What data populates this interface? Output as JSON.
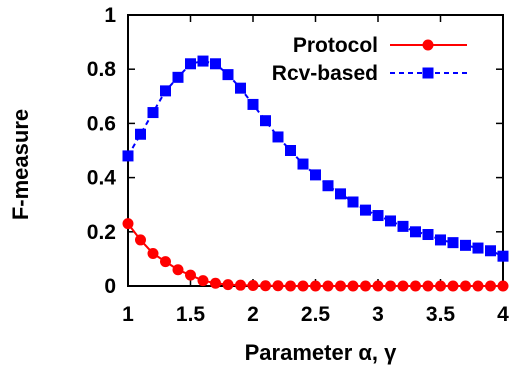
{
  "chart_data": {
    "type": "line",
    "xlabel": "Parameter α, γ",
    "ylabel": "F-measure",
    "xlim": [
      1,
      4
    ],
    "ylim": [
      0,
      1
    ],
    "xticks": [
      "1",
      "1.5",
      "2",
      "2.5",
      "3",
      "3.5",
      "4"
    ],
    "yticks": [
      "0",
      "0.2",
      "0.4",
      "0.6",
      "0.8",
      "1"
    ],
    "grid": false,
    "legend_position": "top-right",
    "x": [
      1.0,
      1.1,
      1.2,
      1.3,
      1.4,
      1.5,
      1.6,
      1.7,
      1.8,
      1.9,
      2.0,
      2.1,
      2.2,
      2.3,
      2.4,
      2.5,
      2.6,
      2.7,
      2.8,
      2.9,
      3.0,
      3.1,
      3.2,
      3.3,
      3.4,
      3.5,
      3.6,
      3.7,
      3.8,
      3.9,
      4.0
    ],
    "series": [
      {
        "name": "Protocol",
        "color": "#ff0000",
        "marker": "circle",
        "line": "solid",
        "values": [
          0.23,
          0.17,
          0.12,
          0.09,
          0.06,
          0.04,
          0.02,
          0.01,
          0.005,
          0.003,
          0.002,
          0.001,
          0.001,
          0.0,
          0.0,
          0.0,
          0.0,
          0.0,
          0.0,
          0.0,
          0.0,
          0.0,
          0.0,
          0.0,
          0.0,
          0.0,
          0.0,
          0.0,
          0.0,
          0.0,
          0.0
        ]
      },
      {
        "name": "Rcv-based",
        "color": "#0000ff",
        "marker": "square",
        "line": "dashed",
        "values": [
          0.48,
          0.56,
          0.64,
          0.72,
          0.77,
          0.82,
          0.83,
          0.82,
          0.78,
          0.73,
          0.67,
          0.61,
          0.55,
          0.5,
          0.45,
          0.41,
          0.37,
          0.34,
          0.31,
          0.28,
          0.26,
          0.24,
          0.22,
          0.2,
          0.19,
          0.17,
          0.16,
          0.15,
          0.14,
          0.13,
          0.11
        ]
      }
    ]
  }
}
